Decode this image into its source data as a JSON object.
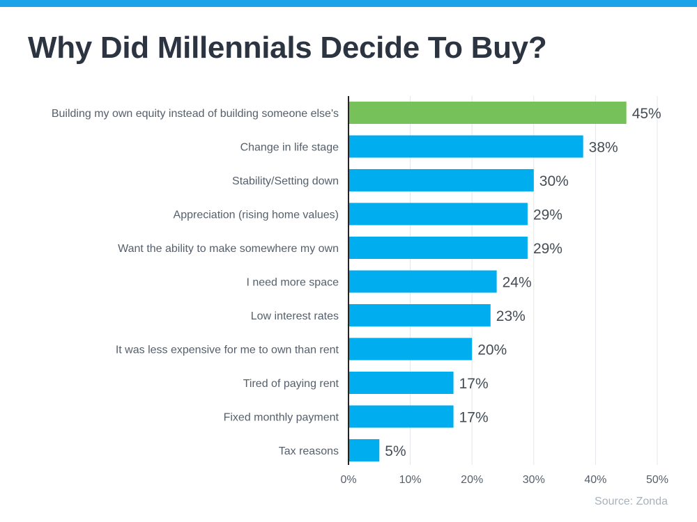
{
  "title": "Why Did Millennials Decide To Buy?",
  "source": "Source: Zonda",
  "colors": {
    "top_bar": "#1aa3e8",
    "bar": "#00aeef",
    "highlight": "#76c15a",
    "axis": "#222222",
    "grid": "#e2e6ea"
  },
  "chart_data": {
    "type": "bar",
    "orientation": "horizontal",
    "title": "Why Did Millennials Decide To Buy?",
    "categories": [
      "Building my own equity instead of building someone else's",
      "Change in life stage",
      "Stability/Setting down",
      "Appreciation (rising home values)",
      "Want the ability to make somewhere my own",
      "I need more space",
      "Low interest rates",
      "It was less expensive for me to own than rent",
      "Tired of paying rent",
      "Fixed monthly payment",
      "Tax reasons"
    ],
    "values": [
      45,
      38,
      30,
      29,
      29,
      24,
      23,
      20,
      17,
      17,
      5
    ],
    "value_labels": [
      "45%",
      "38%",
      "30%",
      "29%",
      "29%",
      "24%",
      "23%",
      "20%",
      "17%",
      "17%",
      "5%"
    ],
    "highlight_index": 0,
    "xlim": [
      0,
      50
    ],
    "xticks": [
      0,
      10,
      20,
      30,
      40,
      50
    ],
    "xtick_labels": [
      "0%",
      "10%",
      "20%",
      "30%",
      "40%",
      "50%"
    ],
    "grid": true,
    "xlabel": "",
    "ylabel": ""
  }
}
